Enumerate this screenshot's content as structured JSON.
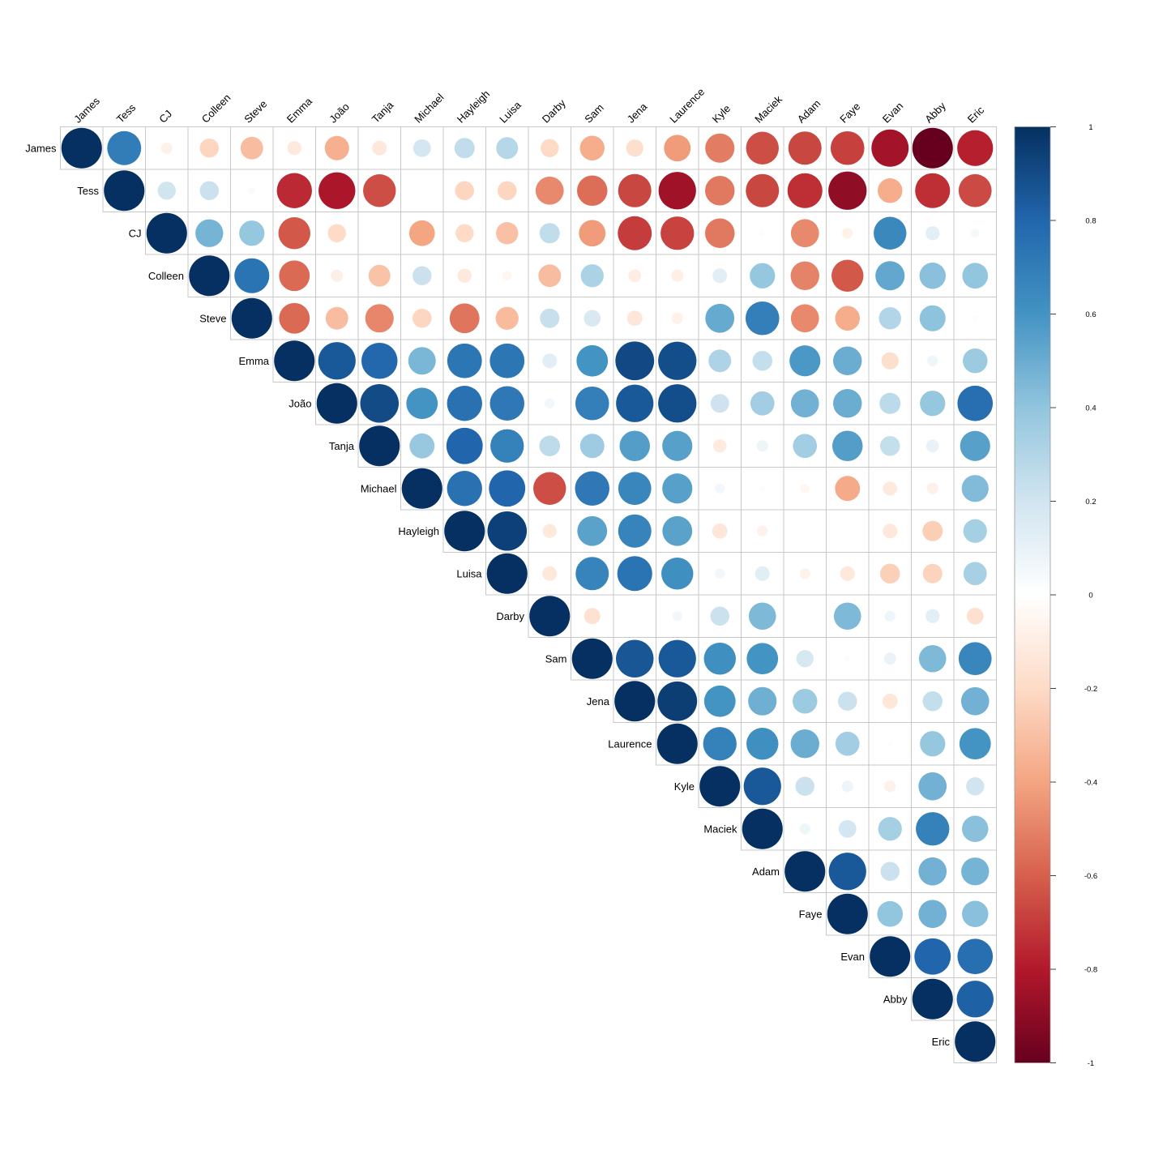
{
  "chart_data": {
    "type": "heatmap",
    "style": "corrplot-upper-circles",
    "title": "",
    "labels": [
      "James",
      "Tess",
      "CJ",
      "Colleen",
      "Steve",
      "Emma",
      "João",
      "Tanja",
      "Michael",
      "Hayleigh",
      "Luisa",
      "Darby",
      "Sam",
      "Jena",
      "Laurence",
      "Kyle",
      "Maciek",
      "Adam",
      "Faye",
      "Evan",
      "Abby",
      "Eric"
    ],
    "matrix": [
      [
        1,
        0.7,
        -0.08,
        -0.22,
        -0.31,
        -0.12,
        -0.36,
        -0.13,
        0.19,
        0.25,
        0.29,
        -0.2,
        -0.37,
        -0.18,
        -0.43,
        -0.52,
        -0.65,
        -0.67,
        -0.69,
        -0.84,
        -1.0,
        -0.78
      ],
      [
        null,
        1,
        0.2,
        0.22,
        0.03,
        -0.75,
        -0.82,
        -0.65,
        0.01,
        -0.22,
        -0.22,
        -0.48,
        -0.56,
        -0.67,
        -0.85,
        -0.53,
        -0.67,
        -0.74,
        -0.89,
        -0.37,
        -0.74,
        -0.66
      ],
      [
        null,
        null,
        1,
        0.47,
        0.39,
        -0.62,
        -0.2,
        0.0,
        -0.4,
        -0.2,
        -0.3,
        0.25,
        -0.43,
        -0.7,
        -0.68,
        -0.53,
        0.02,
        -0.48,
        -0.07,
        0.65,
        0.12,
        0.05
      ],
      [
        null,
        null,
        null,
        1,
        0.74,
        -0.57,
        -0.09,
        -0.29,
        0.22,
        -0.12,
        -0.05,
        -0.31,
        0.32,
        -0.1,
        -0.09,
        0.13,
        0.39,
        -0.5,
        -0.62,
        0.52,
        0.42,
        0.4
      ],
      [
        null,
        null,
        null,
        null,
        1,
        -0.57,
        -0.31,
        -0.49,
        -0.22,
        -0.54,
        -0.32,
        0.23,
        0.17,
        -0.14,
        -0.08,
        0.51,
        0.69,
        -0.48,
        -0.37,
        0.3,
        0.41,
        0.02
      ],
      [
        null,
        null,
        null,
        null,
        null,
        1,
        0.85,
        0.79,
        0.46,
        0.73,
        0.73,
        0.13,
        0.6,
        0.91,
        0.89,
        0.31,
        0.24,
        0.58,
        0.5,
        -0.18,
        0.07,
        0.37
      ],
      [
        null,
        null,
        null,
        null,
        null,
        null,
        1,
        0.9,
        0.6,
        0.75,
        0.72,
        0.06,
        0.69,
        0.85,
        0.89,
        0.21,
        0.35,
        0.48,
        0.5,
        0.27,
        0.39,
        0.76
      ],
      [
        null,
        null,
        null,
        null,
        null,
        null,
        null,
        1,
        0.38,
        0.8,
        0.68,
        0.26,
        0.36,
        0.56,
        0.55,
        -0.11,
        0.08,
        0.35,
        0.56,
        0.24,
        0.1,
        0.55
      ],
      [
        null,
        null,
        null,
        null,
        null,
        null,
        null,
        null,
        1,
        0.75,
        0.8,
        -0.65,
        0.72,
        0.66,
        0.55,
        0.06,
        0.02,
        -0.05,
        -0.38,
        -0.12,
        -0.08,
        0.44
      ],
      [
        null,
        null,
        null,
        null,
        null,
        null,
        null,
        null,
        null,
        1,
        0.94,
        -0.12,
        0.54,
        0.67,
        0.54,
        -0.14,
        -0.07,
        0.0,
        0.0,
        -0.13,
        -0.25,
        0.34
      ],
      [
        null,
        null,
        null,
        null,
        null,
        null,
        null,
        null,
        null,
        null,
        1,
        -0.13,
        0.67,
        0.74,
        0.62,
        0.06,
        0.13,
        -0.07,
        -0.13,
        -0.24,
        -0.23,
        0.33
      ],
      [
        null,
        null,
        null,
        null,
        null,
        null,
        null,
        null,
        null,
        null,
        null,
        1,
        -0.16,
        0.0,
        0.06,
        0.22,
        0.45,
        0.0,
        0.45,
        0.07,
        0.12,
        -0.17
      ],
      [
        null,
        null,
        null,
        null,
        null,
        null,
        null,
        null,
        null,
        null,
        null,
        null,
        1,
        0.86,
        0.85,
        0.62,
        0.6,
        0.18,
        0.02,
        0.09,
        0.45,
        0.66
      ],
      [
        null,
        null,
        null,
        null,
        null,
        null,
        null,
        null,
        null,
        null,
        null,
        null,
        null,
        1,
        0.95,
        0.6,
        0.49,
        0.37,
        0.22,
        -0.14,
        0.24,
        0.48
      ],
      [
        null,
        null,
        null,
        null,
        null,
        null,
        null,
        null,
        null,
        null,
        null,
        null,
        null,
        null,
        1,
        0.68,
        0.62,
        0.5,
        0.35,
        0.02,
        0.39,
        0.6
      ],
      [
        null,
        null,
        null,
        null,
        null,
        null,
        null,
        null,
        null,
        null,
        null,
        null,
        null,
        null,
        null,
        1,
        0.85,
        0.22,
        0.08,
        -0.08,
        0.48,
        0.2
      ],
      [
        null,
        null,
        null,
        null,
        null,
        null,
        null,
        null,
        null,
        null,
        null,
        null,
        null,
        null,
        null,
        null,
        1,
        0.07,
        0.19,
        0.34,
        0.68,
        0.42
      ],
      [
        null,
        null,
        null,
        null,
        null,
        null,
        null,
        null,
        null,
        null,
        null,
        null,
        null,
        null,
        null,
        null,
        null,
        1,
        0.85,
        0.22,
        0.48,
        0.47
      ],
      [
        null,
        null,
        null,
        null,
        null,
        null,
        null,
        null,
        null,
        null,
        null,
        null,
        null,
        null,
        null,
        null,
        null,
        null,
        1,
        0.4,
        0.48,
        0.42
      ],
      [
        null,
        null,
        null,
        null,
        null,
        null,
        null,
        null,
        null,
        null,
        null,
        null,
        null,
        null,
        null,
        null,
        null,
        null,
        null,
        1,
        0.8,
        0.76
      ],
      [
        null,
        null,
        null,
        null,
        null,
        null,
        null,
        null,
        null,
        null,
        null,
        null,
        null,
        null,
        null,
        null,
        null,
        null,
        null,
        null,
        1,
        0.82
      ],
      [
        null,
        null,
        null,
        null,
        null,
        null,
        null,
        null,
        null,
        null,
        null,
        null,
        null,
        null,
        null,
        null,
        null,
        null,
        null,
        null,
        null,
        1
      ]
    ],
    "value_range": [
      -1,
      1
    ],
    "colorbar": {
      "ticks": [
        1,
        0.8,
        0.6,
        0.4,
        0.2,
        0,
        -0.2,
        -0.4,
        -0.6,
        -0.8,
        -1
      ],
      "tick_labels": [
        "1",
        "0.8",
        "0.6",
        "0.4",
        "0.2",
        "0",
        "-0.2",
        "-0.4",
        "-0.6",
        "-0.8",
        "-1"
      ],
      "placement": "right",
      "stops": [
        {
          "v": -1.0,
          "color": "#67001f"
        },
        {
          "v": -0.8,
          "color": "#b2182b"
        },
        {
          "v": -0.6,
          "color": "#d6604d"
        },
        {
          "v": -0.4,
          "color": "#f4a582"
        },
        {
          "v": -0.2,
          "color": "#fddbc7"
        },
        {
          "v": 0.0,
          "color": "#ffffff"
        },
        {
          "v": 0.2,
          "color": "#d1e5f0"
        },
        {
          "v": 0.4,
          "color": "#92c5de"
        },
        {
          "v": 0.6,
          "color": "#4393c3"
        },
        {
          "v": 0.8,
          "color": "#2166ac"
        },
        {
          "v": 1.0,
          "color": "#053061"
        }
      ]
    },
    "grid_color": "#c8c8c8"
  }
}
